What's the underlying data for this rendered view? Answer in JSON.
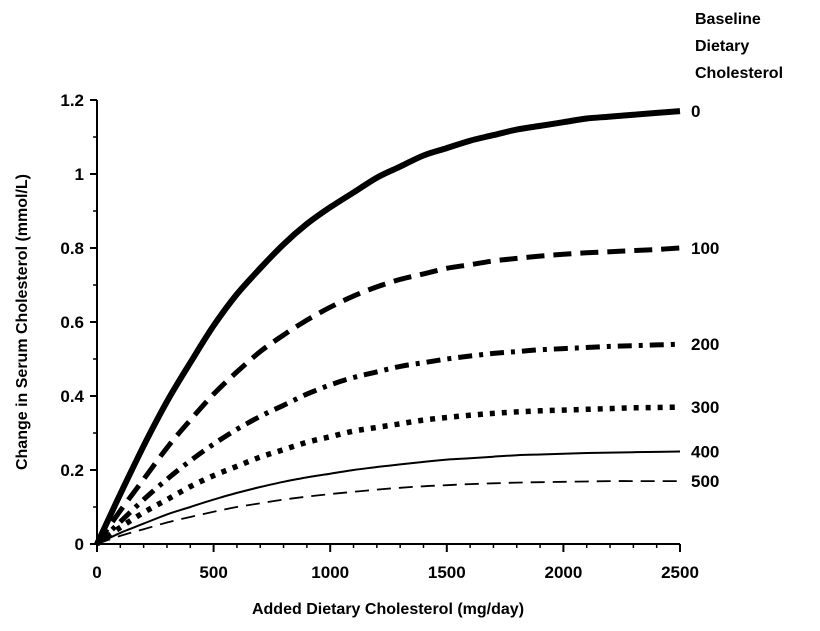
{
  "chart_data": {
    "type": "line",
    "title": "",
    "xlabel": "Added Dietary Cholesterol (mg/day)",
    "ylabel": "Change in Serum Cholesterol (mmol/L)",
    "xlim": [
      0,
      2500
    ],
    "ylim": [
      0,
      1.2
    ],
    "xticks": [
      0,
      500,
      1000,
      1500,
      2000,
      2500
    ],
    "yticks": [
      0,
      0.2,
      0.4,
      0.6,
      0.8,
      1,
      1.2
    ],
    "ytick_labels": [
      "0",
      "0.2",
      "0.4",
      "0.6",
      "0.8",
      "1",
      "1.2"
    ],
    "grid": false,
    "legend_title": [
      "Baseline",
      "Dietary",
      "Cholesterol"
    ],
    "x": [
      0,
      100,
      200,
      300,
      400,
      500,
      600,
      700,
      800,
      900,
      1000,
      1100,
      1200,
      1300,
      1400,
      1500,
      1600,
      1700,
      1800,
      1900,
      2000,
      2100,
      2200,
      2300,
      2400,
      2500
    ],
    "series": [
      {
        "name": "0",
        "style": "solid-thick",
        "color": "#000000",
        "values": [
          0,
          0.135,
          0.265,
          0.385,
          0.49,
          0.59,
          0.675,
          0.745,
          0.81,
          0.865,
          0.91,
          0.95,
          0.99,
          1.02,
          1.05,
          1.07,
          1.09,
          1.105,
          1.12,
          1.13,
          1.14,
          1.15,
          1.155,
          1.16,
          1.165,
          1.17
        ]
      },
      {
        "name": "100",
        "style": "dashed-thick",
        "color": "#000000",
        "values": [
          0,
          0.09,
          0.175,
          0.26,
          0.335,
          0.405,
          0.465,
          0.52,
          0.565,
          0.605,
          0.64,
          0.67,
          0.695,
          0.715,
          0.73,
          0.745,
          0.755,
          0.765,
          0.772,
          0.778,
          0.783,
          0.787,
          0.79,
          0.793,
          0.796,
          0.8
        ]
      },
      {
        "name": "200",
        "style": "dashdot-thick",
        "color": "#000000",
        "values": [
          0,
          0.06,
          0.12,
          0.175,
          0.225,
          0.27,
          0.31,
          0.345,
          0.375,
          0.405,
          0.43,
          0.45,
          0.465,
          0.48,
          0.49,
          0.5,
          0.508,
          0.515,
          0.52,
          0.525,
          0.528,
          0.531,
          0.534,
          0.536,
          0.538,
          0.54
        ]
      },
      {
        "name": "300",
        "style": "dotted-thick",
        "color": "#000000",
        "values": [
          0,
          0.045,
          0.085,
          0.12,
          0.155,
          0.185,
          0.21,
          0.235,
          0.255,
          0.275,
          0.29,
          0.305,
          0.315,
          0.325,
          0.335,
          0.342,
          0.348,
          0.353,
          0.357,
          0.36,
          0.362,
          0.364,
          0.366,
          0.368,
          0.369,
          0.37
        ]
      },
      {
        "name": "400",
        "style": "solid-thin",
        "color": "#000000",
        "values": [
          0,
          0.03,
          0.055,
          0.08,
          0.1,
          0.12,
          0.138,
          0.154,
          0.168,
          0.18,
          0.19,
          0.2,
          0.208,
          0.215,
          0.222,
          0.228,
          0.232,
          0.236,
          0.24,
          0.242,
          0.244,
          0.246,
          0.247,
          0.248,
          0.249,
          0.25
        ]
      },
      {
        "name": "500",
        "style": "dashed-thin",
        "color": "#000000",
        "values": [
          0,
          0.022,
          0.04,
          0.058,
          0.073,
          0.087,
          0.1,
          0.11,
          0.12,
          0.128,
          0.135,
          0.141,
          0.147,
          0.152,
          0.156,
          0.159,
          0.162,
          0.164,
          0.166,
          0.167,
          0.168,
          0.169,
          0.17,
          0.17,
          0.17,
          0.17
        ]
      }
    ]
  }
}
